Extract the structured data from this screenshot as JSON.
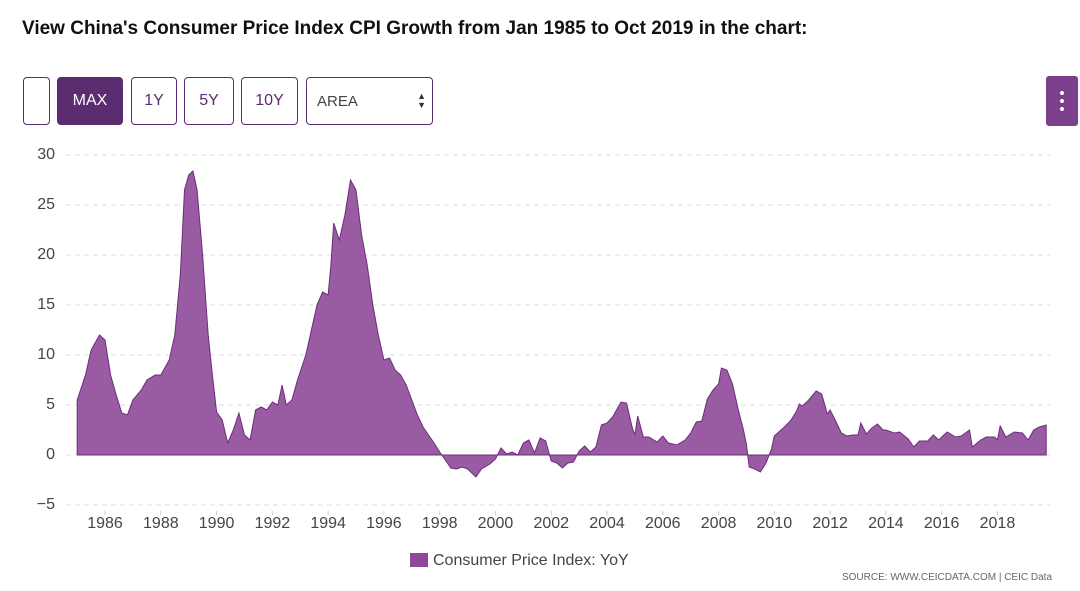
{
  "header": {
    "title": "View China's Consumer Price Index CPI Growth from Jan 1985 to Oct 2019 in the chart:"
  },
  "controls": {
    "buttons": [
      "MAX",
      "1Y",
      "5Y",
      "10Y"
    ],
    "select": "AREA"
  },
  "source": "SOURCE: WWW.CEICDATA.COM | CEIC Data",
  "chart_data": {
    "type": "area",
    "color": "#8e4a99",
    "grid": true,
    "legend": "bottom",
    "xlim": [
      1984.6,
      2020.1
    ],
    "xticks": [
      1986,
      1988,
      1990,
      1992,
      1994,
      1996,
      1998,
      2000,
      2002,
      2004,
      2006,
      2008,
      2010,
      2012,
      2014,
      2016,
      2018
    ],
    "ylim": [
      -6,
      30
    ],
    "yticks": [
      {
        "value": -5,
        "label": "−5"
      },
      0,
      5,
      10,
      15,
      20,
      25,
      30
    ],
    "x": [
      1985.0,
      1985.3,
      1985.5,
      1985.8,
      1986.0,
      1986.2,
      1986.4,
      1986.6,
      1986.8,
      1987.0,
      1987.3,
      1987.5,
      1987.8,
      1988.0,
      1988.3,
      1988.5,
      1988.7,
      1988.85,
      1989.0,
      1989.15,
      1989.3,
      1989.5,
      1989.7,
      1989.85,
      1990.0,
      1990.2,
      1990.4,
      1990.6,
      1990.8,
      1991.0,
      1991.2,
      1991.4,
      1991.6,
      1991.8,
      1992.0,
      1992.2,
      1992.35,
      1992.5,
      1992.7,
      1992.9,
      1993.2,
      1993.4,
      1993.6,
      1993.8,
      1994.0,
      1994.1,
      1994.2,
      1994.4,
      1994.6,
      1994.8,
      1995.0,
      1995.2,
      1995.4,
      1995.6,
      1995.8,
      1996.0,
      1996.2,
      1996.4,
      1996.6,
      1996.8,
      1997.0,
      1997.2,
      1997.4,
      1997.6,
      1997.8,
      1998.0,
      1998.2,
      1998.4,
      1998.6,
      1998.8,
      1999.0,
      1999.3,
      1999.5,
      1999.8,
      2000.0,
      2000.2,
      2000.4,
      2000.6,
      2000.8,
      2001.0,
      2001.2,
      2001.4,
      2001.6,
      2001.8,
      2002.0,
      2002.2,
      2002.4,
      2002.6,
      2002.8,
      2003.0,
      2003.2,
      2003.4,
      2003.6,
      2003.8,
      2004.0,
      2004.2,
      2004.5,
      2004.7,
      2004.9,
      2005.0,
      2005.1,
      2005.3,
      2005.5,
      2005.8,
      2006.0,
      2006.2,
      2006.5,
      2006.8,
      2007.0,
      2007.2,
      2007.4,
      2007.6,
      2007.8,
      2008.0,
      2008.1,
      2008.3,
      2008.5,
      2008.7,
      2008.9,
      2009.0,
      2009.1,
      2009.3,
      2009.5,
      2009.7,
      2009.9,
      2010.0,
      2010.2,
      2010.4,
      2010.6,
      2010.8,
      2010.9,
      2011.0,
      2011.2,
      2011.5,
      2011.7,
      2011.9,
      2012.0,
      2012.2,
      2012.4,
      2012.6,
      2012.8,
      2013.0,
      2013.1,
      2013.3,
      2013.5,
      2013.7,
      2013.9,
      2014.0,
      2014.3,
      2014.5,
      2014.8,
      2015.0,
      2015.2,
      2015.5,
      2015.7,
      2015.9,
      2016.0,
      2016.2,
      2016.5,
      2016.7,
      2016.9,
      2017.0,
      2017.1,
      2017.4,
      2017.6,
      2017.9,
      2018.0,
      2018.1,
      2018.3,
      2018.6,
      2018.9,
      2019.1,
      2019.3,
      2019.5,
      2019.75
    ],
    "series": [
      {
        "name": "Consumer Price Index: YoY",
        "color": "#8e4a99",
        "values": [
          5.5,
          8,
          10.5,
          12,
          11.5,
          8,
          6,
          4.2,
          4,
          5.5,
          6.5,
          7.5,
          8,
          8,
          9.5,
          12,
          18,
          26.5,
          28,
          28.4,
          26.5,
          20,
          12,
          8,
          4.3,
          3.5,
          1.2,
          2.5,
          4.2,
          2,
          1.5,
          4.5,
          4.8,
          4.5,
          5.3,
          5.0,
          7,
          5,
          5.5,
          7.5,
          10,
          12.5,
          15,
          16.3,
          16,
          19,
          23.2,
          21.5,
          24,
          27.5,
          26.5,
          22,
          19,
          15,
          12,
          9.5,
          9.7,
          8.5,
          8,
          7,
          5.5,
          4,
          2.8,
          2,
          1.2,
          0.3,
          -0.5,
          -1.3,
          -1.4,
          -1.2,
          -1.4,
          -2.2,
          -1.4,
          -0.9,
          -0.4,
          0.7,
          0.1,
          0.3,
          0.0,
          1.2,
          1.5,
          0.2,
          1.7,
          1.4,
          -0.6,
          -0.8,
          -1.3,
          -0.8,
          -0.7,
          0.4,
          0.9,
          0.3,
          0.8,
          3.0,
          3.2,
          3.8,
          5.3,
          5.2,
          2.8,
          2.0,
          3.9,
          1.8,
          1.8,
          1.3,
          1.9,
          1.2,
          1.0,
          1.5,
          2.2,
          3.3,
          3.4,
          5.6,
          6.5,
          7.1,
          8.7,
          8.5,
          7.1,
          4.6,
          2.4,
          1.0,
          -1.2,
          -1.4,
          -1.7,
          -0.8,
          0.6,
          1.9,
          2.4,
          2.9,
          3.5,
          4.4,
          5.1,
          4.9,
          5.4,
          6.4,
          6.1,
          4.1,
          4.5,
          3.4,
          2.2,
          1.9,
          2.0,
          2.0,
          3.2,
          2.1,
          2.7,
          3.1,
          2.5,
          2.5,
          2.2,
          2.3,
          1.6,
          0.8,
          1.4,
          1.4,
          2.0,
          1.5,
          1.8,
          2.3,
          1.8,
          1.9,
          2.3,
          2.5,
          0.8,
          1.5,
          1.8,
          1.8,
          1.5,
          2.9,
          1.8,
          2.3,
          2.2,
          1.5,
          2.5,
          2.8,
          3.0
        ]
      }
    ]
  }
}
